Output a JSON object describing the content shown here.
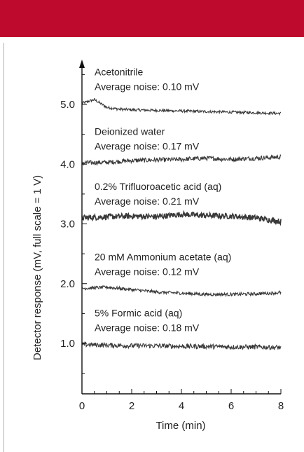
{
  "colors": {
    "header": "#be0a2d",
    "trace": "#3a3a3a",
    "axis": "#111111"
  },
  "chart_data": {
    "type": "line",
    "title": "",
    "xlabel": "Time (min)",
    "ylabel": "Detector response (mV, full scale = 1 V)",
    "xlim": [
      0,
      8
    ],
    "ylim": [
      0.2,
      5.8
    ],
    "xticks": [
      "0",
      "2",
      "4",
      "6",
      "8"
    ],
    "yticks": [
      "1.0",
      "2.0",
      "3.0",
      "4.0",
      "5.0"
    ],
    "grid": false,
    "legend": "none",
    "series": [
      {
        "label": "Acetonitrile",
        "noise_label": "Average noise: 0.10 mV",
        "noise_mv": 0.1,
        "x": [
          0,
          0.5,
          1,
          1.5,
          2,
          3,
          4,
          5,
          6,
          7,
          8
        ],
        "y": [
          5.02,
          5.08,
          4.95,
          4.92,
          4.91,
          4.9,
          4.89,
          4.88,
          4.87,
          4.86,
          4.85
        ]
      },
      {
        "label": "Deionized water",
        "noise_label": "Average noise: 0.17 mV",
        "noise_mv": 0.17,
        "x": [
          0,
          1,
          2,
          3,
          4,
          5,
          6,
          7,
          8
        ],
        "y": [
          4.02,
          4.03,
          4.06,
          4.07,
          4.08,
          4.1,
          4.08,
          4.1,
          4.12
        ]
      },
      {
        "label": "0.2% Trifluoroacetic acid (aq)",
        "noise_label": "Average noise: 0.21 mV",
        "noise_mv": 0.21,
        "x": [
          0,
          1,
          2,
          3,
          4,
          5,
          6,
          7,
          8
        ],
        "y": [
          3.1,
          3.12,
          3.13,
          3.12,
          3.16,
          3.14,
          3.13,
          3.1,
          3.04
        ]
      },
      {
        "label": "20 mM Ammonium acetate (aq)",
        "noise_label": "Average noise: 0.12 mV",
        "noise_mv": 0.12,
        "x": [
          0,
          1,
          2,
          3,
          4,
          5,
          6,
          7,
          8
        ],
        "y": [
          1.92,
          1.94,
          1.9,
          1.86,
          1.84,
          1.82,
          1.82,
          1.83,
          1.85
        ]
      },
      {
        "label": "5% Formic acid (aq)",
        "noise_label": "Average noise: 0.18 mV",
        "noise_mv": 0.18,
        "x": [
          0,
          1,
          2,
          3,
          4,
          5,
          6,
          7,
          8
        ],
        "y": [
          0.98,
          0.97,
          0.96,
          0.96,
          0.95,
          0.95,
          0.94,
          0.94,
          0.93
        ]
      }
    ]
  }
}
